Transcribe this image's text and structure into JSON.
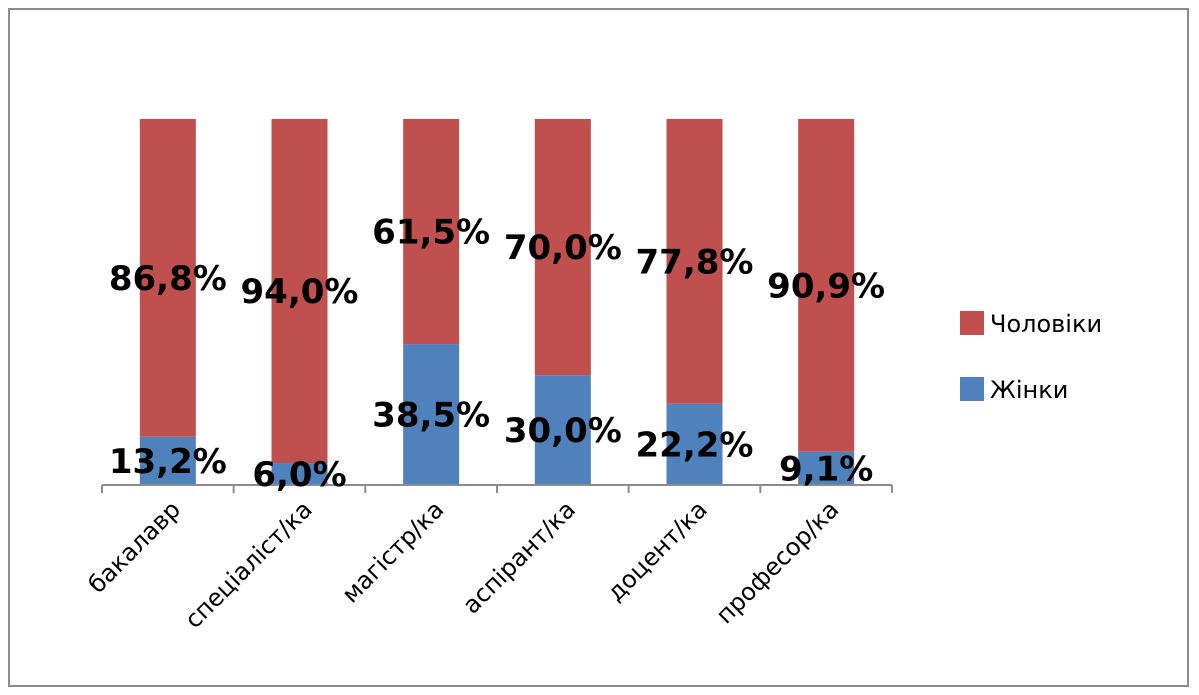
{
  "chart_data": {
    "type": "bar",
    "stacked": "percent",
    "categories": [
      "бакалавр",
      "спеціаліст/ка",
      "магістр/ка",
      "аспірант/ка",
      "доцент/ка",
      "професор/ка"
    ],
    "series": [
      {
        "name": "Жінки",
        "color": "#4f81bd",
        "values": [
          13.2,
          6.0,
          38.5,
          30.0,
          22.2,
          9.1
        ],
        "labels": [
          "13,2%",
          "6,0%",
          "38,5%",
          "30,0%",
          "22,2%",
          "9,1%"
        ]
      },
      {
        "name": "Чоловіки",
        "color": "#c0504d",
        "values": [
          86.8,
          94.0,
          61.5,
          70.0,
          77.8,
          90.9
        ],
        "labels": [
          "86,8%",
          "94,0%",
          "61,5%",
          "70,0%",
          "77,8%",
          "90,9%"
        ]
      }
    ],
    "ylim": [
      0,
      100
    ],
    "grid": false,
    "legend_position": "right",
    "legend_order": [
      "Чоловіки",
      "Жінки"
    ]
  }
}
